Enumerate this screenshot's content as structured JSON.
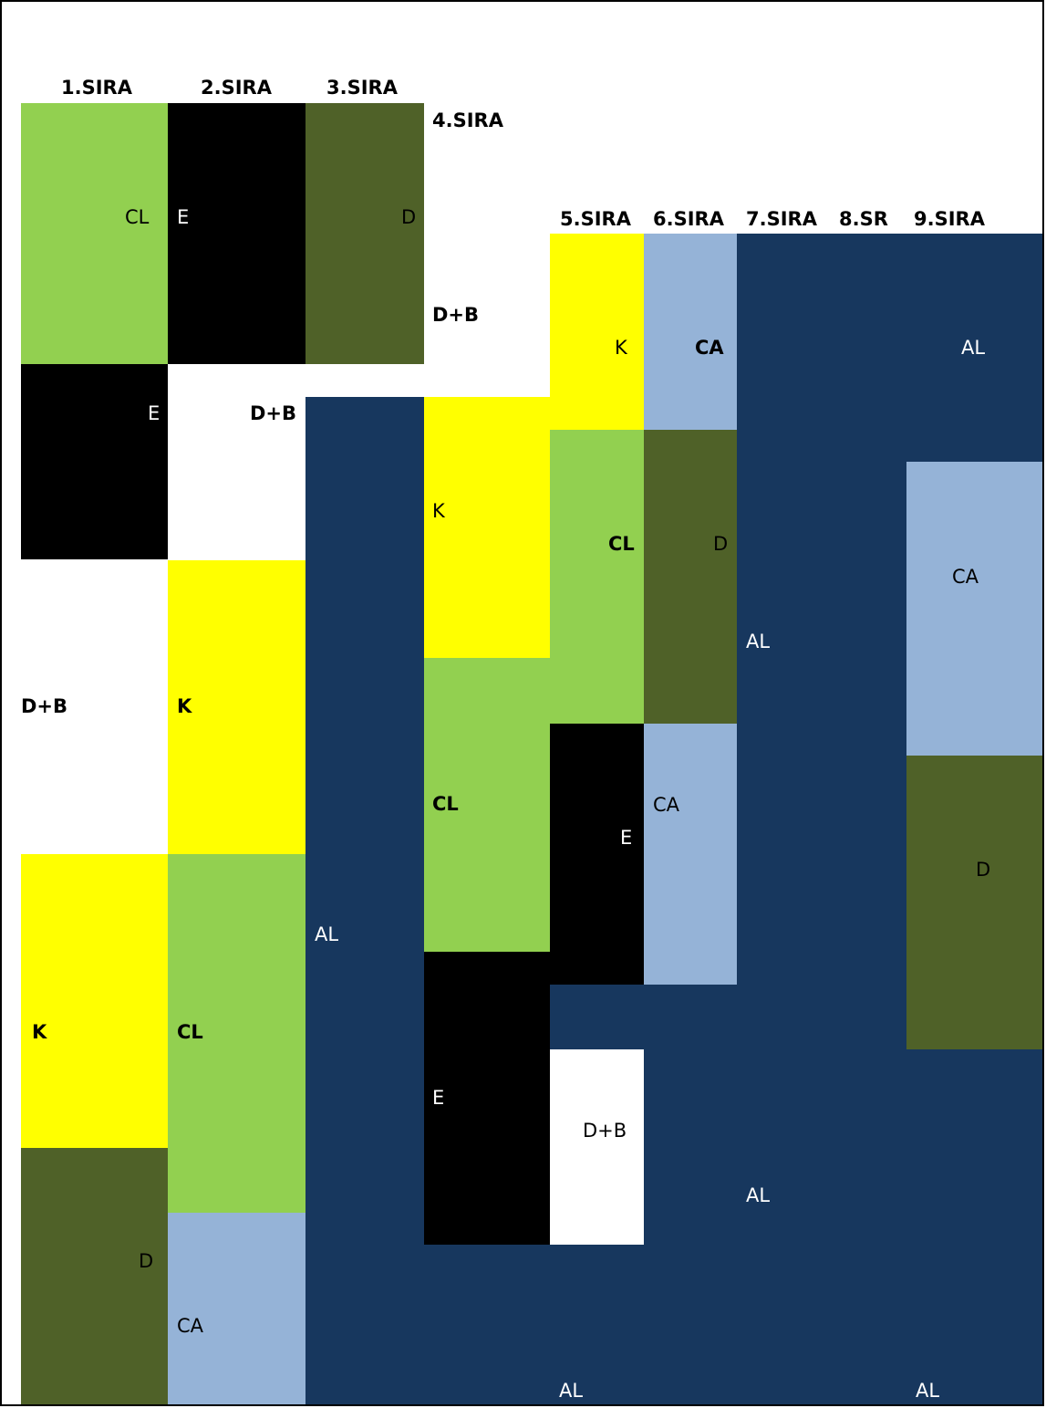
{
  "colors": {
    "light_green": "#92D050",
    "black": "#000000",
    "olive": "#4F6128",
    "yellow": "#FFFF00",
    "light_blue": "#95B3D7",
    "navy": "#17375E",
    "white": "#FFFFFF"
  },
  "headers": {
    "h1": "1.SIRA",
    "h2": "2.SIRA",
    "h3": "3.SIRA",
    "h4": "4.SIRA",
    "h5": "5.SIRA",
    "h6": "6.SIRA",
    "h7": "7.SIRA",
    "h8": "8.SR",
    "h9": "9.SIRA"
  },
  "labels": {
    "r1_cl": "CL",
    "r1_e": "E",
    "r1_db": "D+B",
    "r1_k": "K",
    "r1_d": "D",
    "r2_e": "E",
    "r2_db": "D+B",
    "r2_k": "K",
    "r2_cl": "CL",
    "r2_ca": "CA",
    "r3_d": "D",
    "r3_al": "AL",
    "r4_db": "D+B",
    "r4_k": "K",
    "r4_cl": "CL",
    "r4_e": "E",
    "r5_k": "K",
    "r5_cl": "CL",
    "r5_e": "E",
    "r5_db": "D+B",
    "r5_al_bottom": "AL",
    "r6_ca_top": "CA",
    "r6_d": "D",
    "r6_ca_mid": "CA",
    "r7_al_mid": "AL",
    "r7_al_low": "AL",
    "r9_al_top": "AL",
    "r9_ca": "CA",
    "r9_d": "D",
    "r9_al_bottom": "AL"
  }
}
